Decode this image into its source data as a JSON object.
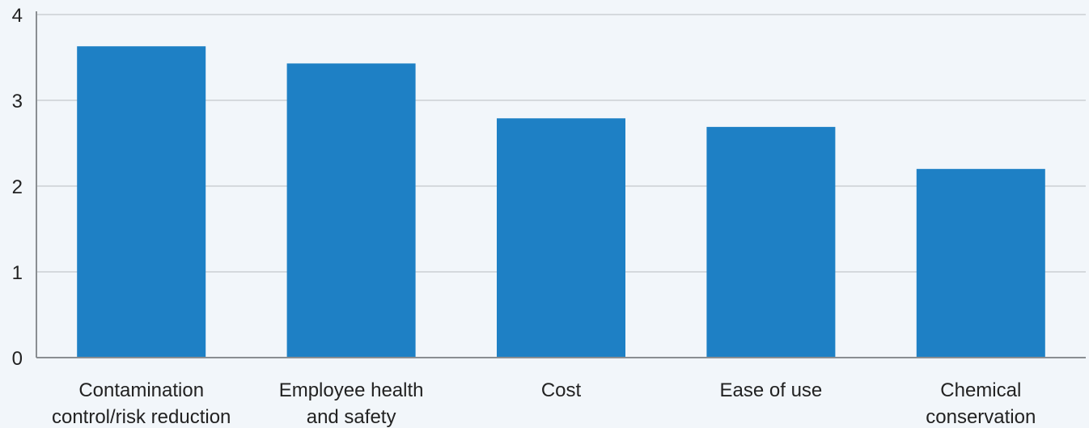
{
  "chart_data": {
    "type": "bar",
    "categories": [
      [
        "Contamination",
        "control/risk reduction"
      ],
      [
        "Employee health",
        "and safety"
      ],
      [
        "Cost"
      ],
      [
        "Ease of use"
      ],
      [
        "Chemical",
        "conservation"
      ]
    ],
    "values": [
      3.63,
      3.43,
      2.79,
      2.69,
      2.2
    ],
    "ylim": [
      0,
      4
    ],
    "yticks": [
      0,
      1,
      2,
      3,
      4
    ],
    "title": "",
    "xlabel": "",
    "ylabel": "",
    "grid": true,
    "colors": {
      "bar": "#1e80c5",
      "grid": "#b8bcc0",
      "axis": "#8a8e92",
      "background": "#f2f6fa",
      "text": "#222222"
    }
  }
}
